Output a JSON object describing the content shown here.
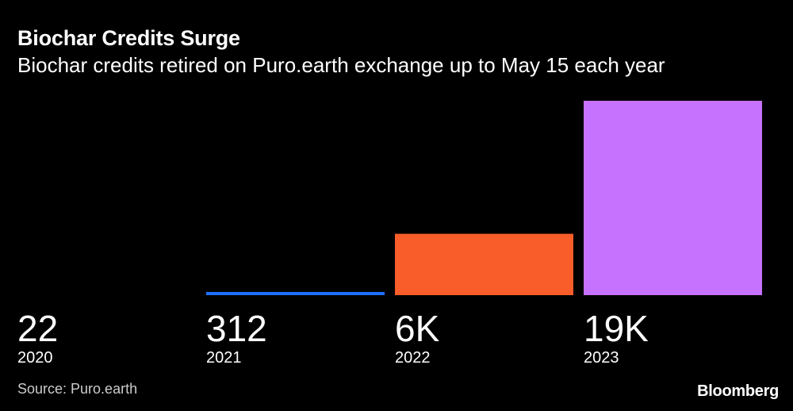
{
  "chart_data": {
    "type": "bar",
    "title": "Biochar Credits Surge",
    "subtitle": "Biochar credits retired on Puro.earth exchange up to May 15 each year",
    "categories": [
      "2020",
      "2021",
      "2022",
      "2023"
    ],
    "values": [
      22,
      312,
      6000,
      19000
    ],
    "value_labels": [
      "22",
      "312",
      "6K",
      "19K"
    ],
    "colors": [
      "#1f6fff",
      "#1f6fff",
      "#f85d2a",
      "#c771ff"
    ],
    "ylim": [
      0,
      19000
    ],
    "grid": false,
    "xlabel": "",
    "ylabel": ""
  },
  "source": "Source: Puro.earth",
  "brand": "Bloomberg"
}
